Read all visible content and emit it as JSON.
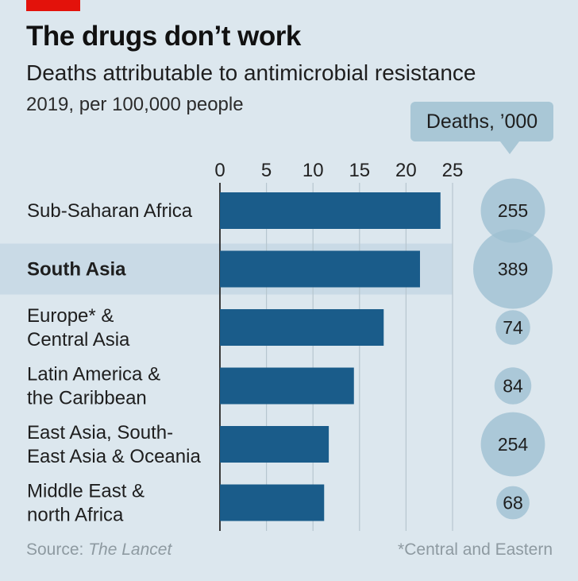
{
  "header": {
    "title": "The drugs don’t work",
    "subtitle": "Deaths attributable to antimicrobial resistance",
    "subsubtitle": "2019, per 100,000 people"
  },
  "bubble_legend": {
    "label": "Deaths, ’000"
  },
  "footer": {
    "source_prefix": "Source: ",
    "source_name": "The Lancet",
    "note": "*Central and Eastern"
  },
  "colors": {
    "bar": "#1a5c8a",
    "bubble": "#9fc1d2",
    "highlight": "#c9dae6",
    "background": "#dce7ee",
    "tag": "#e3120b"
  },
  "chart_data": {
    "type": "bar",
    "orientation": "horizontal",
    "categories": [
      "Sub-Saharan Africa",
      "South Asia",
      "Europe* & Central Asia",
      "Latin America & the Caribbean",
      "East Asia, South-East Asia & Oceania",
      "Middle East & north Africa"
    ],
    "category_lines": [
      [
        "Sub-Saharan Africa"
      ],
      [
        "South Asia"
      ],
      [
        "Europe* &",
        "Central Asia"
      ],
      [
        "Latin America &",
        "the Caribbean"
      ],
      [
        "East Asia, South-",
        "East Asia & Oceania"
      ],
      [
        "Middle East &",
        "north Africa"
      ]
    ],
    "highlight_index": 1,
    "values": [
      23.7,
      21.5,
      17.6,
      14.4,
      11.7,
      11.2
    ],
    "deaths_thousands": [
      255,
      389,
      74,
      84,
      254,
      68
    ],
    "xlim": [
      0,
      25
    ],
    "ticks": [
      0,
      5,
      10,
      15,
      20,
      25
    ],
    "grid": true
  }
}
